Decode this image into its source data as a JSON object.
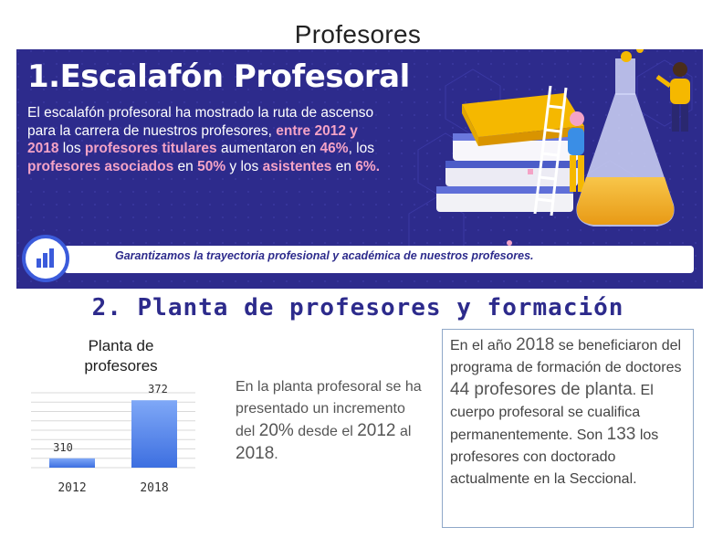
{
  "slide": {
    "title": "Profesores"
  },
  "banner": {
    "title": "1.Escalafón Profesoral",
    "body": {
      "p1": "El escalafón profesoral ha mostrado la ruta de ascenso para la carrera de nuestros profesores, ",
      "h1": "entre 2012 y 2018",
      "p2": " los ",
      "h2": "profesores titulares",
      "p3": " aumentaron en ",
      "h3": "46%",
      "p4": ", los ",
      "h4": "profesores asociados",
      "p5": " en ",
      "h5": "50%",
      "p6": " y los ",
      "h6": "asistentes",
      "p7": " en ",
      "h7": "6%."
    },
    "footer": "Garantizamos la trayectoria profesional y académica de nuestros profesores.",
    "icons": [
      "bar-chart-icon",
      "books-icon",
      "ladder-icon",
      "flask-icon",
      "person-icon"
    ],
    "colors": {
      "background": "#2d2b8c",
      "highlight": "#f4a3c6",
      "accent": "#f5b800"
    }
  },
  "section2": {
    "title": "2. Planta de profesores y formación"
  },
  "chart_data": {
    "type": "bar",
    "title": "Planta de profesores",
    "categories": [
      "2012",
      "2018"
    ],
    "values": [
      310,
      372
    ],
    "data_labels": [
      "310",
      "372"
    ],
    "ylim": [
      300,
      380
    ],
    "grid": true,
    "color": "#5b8ff0"
  },
  "middle": {
    "t1": "En la planta profesoral se ha presentado un incremento del ",
    "n1": "20%",
    "t2": " desde el ",
    "n2": "2012",
    "t3": " al ",
    "n3": "2018",
    "t4": "."
  },
  "right": {
    "t1": "En el año ",
    "n1": "2018",
    "t2": " se beneficiaron del programa de formación de doctores ",
    "n2": "44 profesores de planta",
    "t3": ". El cuerpo profesoral se cualifica permanentemente. Son ",
    "n3": "133",
    "t4": " los profesores con doctorado actualmente en la Seccional."
  }
}
